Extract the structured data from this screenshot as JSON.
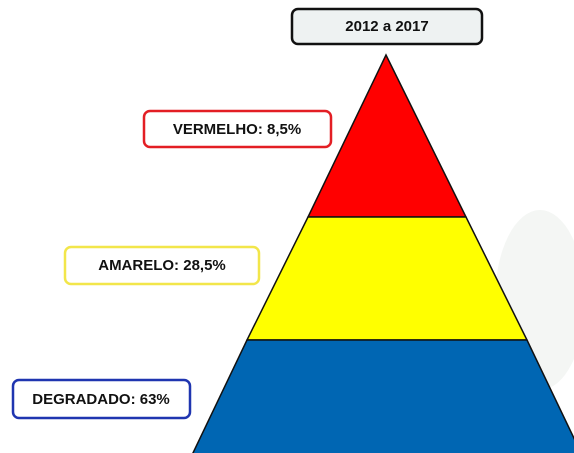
{
  "title": "2012 a 2017",
  "levels": [
    "VERMELHO: 8,5%",
    "AMARELO: 28,5%",
    "DEGRADADO: 63%"
  ]
}
